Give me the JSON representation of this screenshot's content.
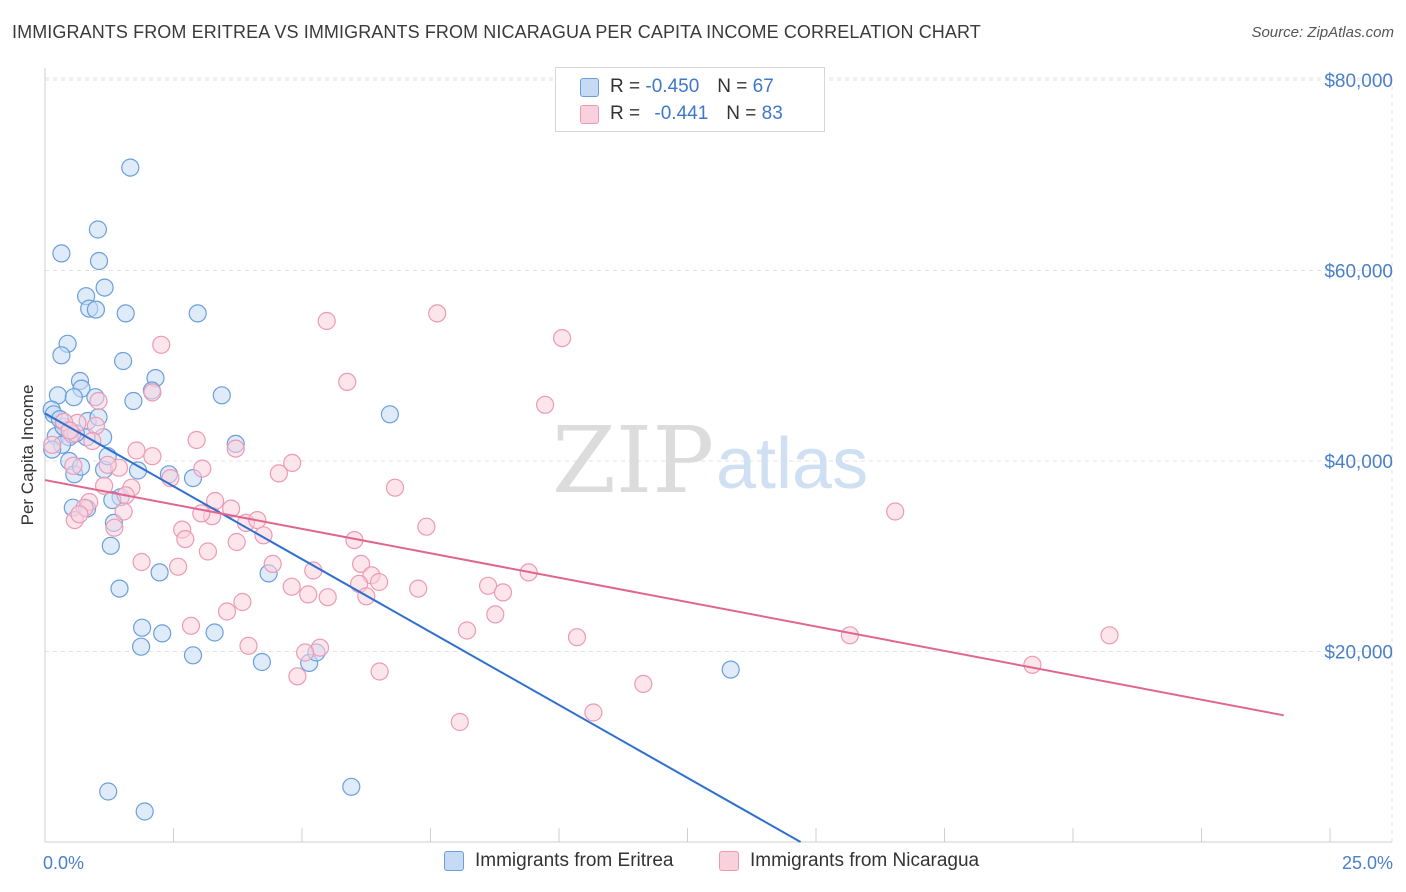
{
  "header": {
    "title": "IMMIGRANTS FROM ERITREA VS IMMIGRANTS FROM NICARAGUA PER CAPITA INCOME CORRELATION CHART",
    "source": "Source: ZipAtlas.com"
  },
  "watermark": {
    "zip": "ZIP",
    "atlas": "atlas"
  },
  "legend_top": {
    "r_label": "R =",
    "n_label": "N =",
    "eritrea": {
      "r": "-0.450",
      "n": "67"
    },
    "nicaragua": {
      "r": "-0.441",
      "n": "83"
    }
  },
  "colors": {
    "eritrea_fill": "#c6daf5",
    "eritrea_stroke": "#6a9fdb",
    "eritrea_line": "#2f6fd0",
    "nicaragua_fill": "#f9d1dd",
    "nicaragua_stroke": "#ec9ab4",
    "nicaragua_line": "#e0668f",
    "tick_text": "#4a80c8",
    "grid": "#e3e3e3"
  },
  "chart_data": {
    "type": "scatter",
    "title": "IMMIGRANTS FROM ERITREA VS IMMIGRANTS FROM NICARAGUA PER CAPITA INCOME CORRELATION CHART",
    "xlabel": "",
    "ylabel": "Per Capita Income",
    "xlim": [
      0,
      25
    ],
    "ylim": [
      0,
      80000
    ],
    "x_tick_labels": [
      "0.0%",
      "25.0%"
    ],
    "y_ticks": [
      20000,
      40000,
      60000,
      80000
    ],
    "y_tick_labels": [
      "$20,000",
      "$40,000",
      "$60,000",
      "$80,000"
    ],
    "grid": true,
    "legend_position": "bottom",
    "series": [
      {
        "name": "Immigrants from Eritrea",
        "color": "#6a9fdb",
        "r": -0.45,
        "n": 67,
        "trend": {
          "x": [
            0,
            14.7
          ],
          "y": [
            45000,
            0
          ]
        },
        "points": [
          [
            1.66,
            70800
          ],
          [
            1.03,
            64300
          ],
          [
            0.32,
            61800
          ],
          [
            1.05,
            61000
          ],
          [
            1.16,
            58200
          ],
          [
            0.8,
            57300
          ],
          [
            0.86,
            56000
          ],
          [
            0.99,
            55900
          ],
          [
            1.57,
            55500
          ],
          [
            2.97,
            55500
          ],
          [
            0.44,
            52300
          ],
          [
            0.32,
            51100
          ],
          [
            1.52,
            50500
          ],
          [
            2.15,
            48700
          ],
          [
            0.68,
            48400
          ],
          [
            0.71,
            47600
          ],
          [
            0.25,
            46900
          ],
          [
            2.08,
            47400
          ],
          [
            0.56,
            46700
          ],
          [
            0.98,
            46700
          ],
          [
            1.72,
            46300
          ],
          [
            3.44,
            46900
          ],
          [
            0.13,
            45400
          ],
          [
            0.17,
            44900
          ],
          [
            6.71,
            44900
          ],
          [
            0.83,
            44200
          ],
          [
            0.41,
            43300
          ],
          [
            0.21,
            42600
          ],
          [
            0.47,
            42500
          ],
          [
            0.81,
            42500
          ],
          [
            1.13,
            42500
          ],
          [
            3.71,
            41800
          ],
          [
            0.33,
            41700
          ],
          [
            0.47,
            40000
          ],
          [
            0.57,
            38600
          ],
          [
            1.15,
            39100
          ],
          [
            1.81,
            39000
          ],
          [
            2.41,
            38600
          ],
          [
            2.88,
            38200
          ],
          [
            1.47,
            36200
          ],
          [
            1.31,
            35900
          ],
          [
            0.54,
            35100
          ],
          [
            0.82,
            35000
          ],
          [
            1.34,
            33500
          ],
          [
            1.28,
            31100
          ],
          [
            1.45,
            26600
          ],
          [
            2.23,
            28300
          ],
          [
            4.35,
            28200
          ],
          [
            1.89,
            22500
          ],
          [
            2.28,
            21900
          ],
          [
            3.3,
            22000
          ],
          [
            1.87,
            20500
          ],
          [
            2.88,
            19600
          ],
          [
            4.22,
            18900
          ],
          [
            5.14,
            18800
          ],
          [
            5.28,
            19900
          ],
          [
            13.34,
            18100
          ],
          [
            1.23,
            5300
          ],
          [
            5.96,
            5800
          ],
          [
            1.94,
            3200
          ],
          [
            0.14,
            41200
          ],
          [
            0.36,
            43600
          ],
          [
            0.6,
            42900
          ],
          [
            1.04,
            44600
          ],
          [
            0.29,
            44400
          ],
          [
            1.22,
            40500
          ],
          [
            0.7,
            39400
          ]
        ]
      },
      {
        "name": "Immigrants from Nicaragua",
        "color": "#ec9ab4",
        "r": -0.441,
        "n": 83,
        "trend": {
          "x": [
            0,
            24.1
          ],
          "y": [
            38000,
            13300
          ]
        },
        "points": [
          [
            7.63,
            55500
          ],
          [
            5.48,
            54700
          ],
          [
            10.06,
            52900
          ],
          [
            2.26,
            52200
          ],
          [
            5.88,
            48300
          ],
          [
            2.09,
            47200
          ],
          [
            1.04,
            46300
          ],
          [
            9.73,
            45900
          ],
          [
            0.63,
            44000
          ],
          [
            0.99,
            43700
          ],
          [
            0.53,
            42800
          ],
          [
            2.95,
            42200
          ],
          [
            0.14,
            41700
          ],
          [
            1.78,
            41100
          ],
          [
            3.71,
            41300
          ],
          [
            2.09,
            40500
          ],
          [
            0.55,
            39500
          ],
          [
            4.81,
            39800
          ],
          [
            1.44,
            39300
          ],
          [
            3.06,
            39200
          ],
          [
            4.55,
            38700
          ],
          [
            2.44,
            38200
          ],
          [
            1.15,
            37400
          ],
          [
            1.68,
            37200
          ],
          [
            6.81,
            37200
          ],
          [
            1.57,
            36400
          ],
          [
            0.86,
            35700
          ],
          [
            3.31,
            35800
          ],
          [
            0.77,
            35100
          ],
          [
            3.62,
            35000
          ],
          [
            1.53,
            34700
          ],
          [
            3.25,
            34200
          ],
          [
            0.58,
            33800
          ],
          [
            0.67,
            34400
          ],
          [
            3.04,
            34500
          ],
          [
            3.91,
            33500
          ],
          [
            4.13,
            33800
          ],
          [
            1.35,
            33000
          ],
          [
            2.67,
            32800
          ],
          [
            4.25,
            32200
          ],
          [
            7.42,
            33100
          ],
          [
            16.54,
            34700
          ],
          [
            2.73,
            31800
          ],
          [
            3.73,
            31500
          ],
          [
            6.02,
            31700
          ],
          [
            3.17,
            30500
          ],
          [
            1.88,
            29400
          ],
          [
            2.59,
            28900
          ],
          [
            5.22,
            28500
          ],
          [
            6.15,
            29200
          ],
          [
            6.35,
            28000
          ],
          [
            4.43,
            29200
          ],
          [
            9.41,
            28300
          ],
          [
            6.11,
            27100
          ],
          [
            6.5,
            27300
          ],
          [
            4.8,
            26800
          ],
          [
            7.26,
            26600
          ],
          [
            8.62,
            26900
          ],
          [
            6.25,
            25800
          ],
          [
            5.5,
            25700
          ],
          [
            8.91,
            26200
          ],
          [
            5.12,
            26000
          ],
          [
            3.84,
            25200
          ],
          [
            3.54,
            24200
          ],
          [
            8.76,
            23900
          ],
          [
            2.84,
            22700
          ],
          [
            8.21,
            22200
          ],
          [
            10.35,
            21500
          ],
          [
            15.66,
            21700
          ],
          [
            20.71,
            21700
          ],
          [
            3.96,
            20600
          ],
          [
            5.35,
            20400
          ],
          [
            5.06,
            19900
          ],
          [
            4.91,
            17400
          ],
          [
            6.51,
            17900
          ],
          [
            11.64,
            16600
          ],
          [
            19.21,
            18600
          ],
          [
            10.67,
            13600
          ],
          [
            8.07,
            12600
          ],
          [
            0.37,
            44100
          ],
          [
            0.92,
            42100
          ],
          [
            0.48,
            43200
          ],
          [
            1.22,
            39600
          ]
        ]
      }
    ]
  },
  "legend_bottom": {
    "eritrea": "Immigrants from Eritrea",
    "nicaragua": "Immigrants from Nicaragua"
  }
}
